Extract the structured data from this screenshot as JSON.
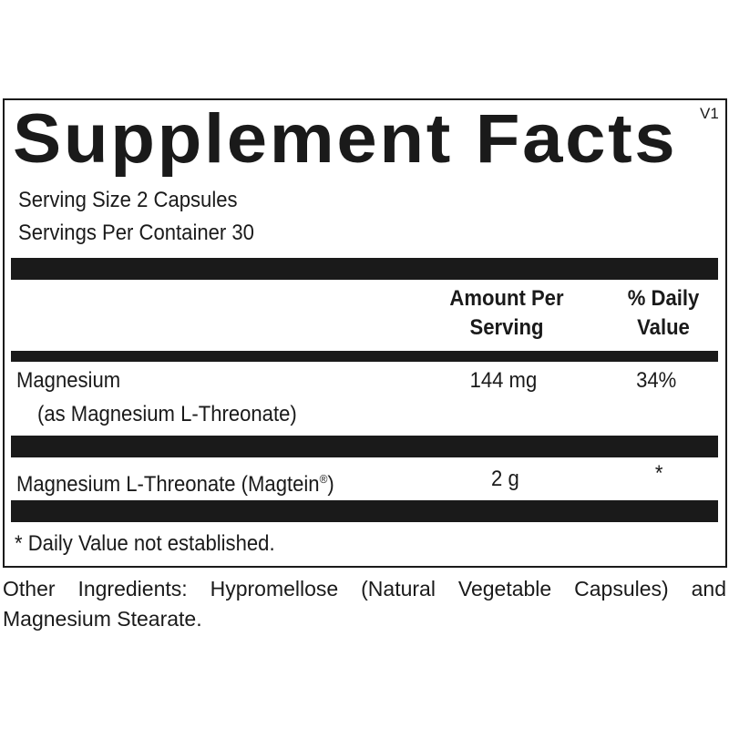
{
  "title": "Supplement Facts",
  "version": "V1",
  "serving_size": "Serving Size 2 Capsules",
  "servings_per_container": "Servings Per Container 30",
  "columns": {
    "amount_line1": "Amount Per",
    "amount_line2": "Serving",
    "dv_line1": "% Daily",
    "dv_line2": "Value"
  },
  "rows": [
    {
      "name": "Magnesium",
      "sub": "(as Magnesium L-Threonate)",
      "amount": "144 mg",
      "dv": "34%"
    },
    {
      "name": "Magnesium L-Threonate (Magtein",
      "reg": "®",
      ")": ")",
      "amount": "2 g",
      "dv": "*"
    }
  ],
  "footnote": "* Daily Value not established.",
  "other_ingredients": "Other Ingredients: Hypromellose (Natural Vegetable Capsules) and Magnesium Stearate."
}
